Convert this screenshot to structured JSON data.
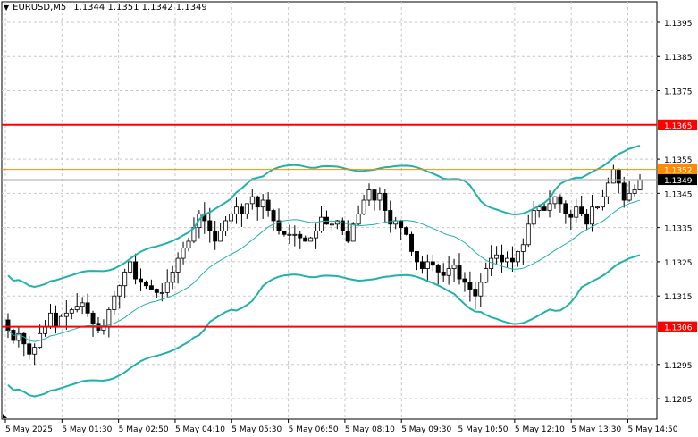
{
  "header": {
    "symbol_timeframe": "EURUSD,M5",
    "ohlc": "1.1344 1.1351 1.1342 1.1349"
  },
  "price_axis": {
    "labels": [
      "1.1395",
      "1.1385",
      "1.1375",
      "1.1365",
      "1.1355",
      "1.1352",
      "1.1349",
      "1.1345",
      "1.1335",
      "1.1325",
      "1.1315",
      "1.1306",
      "1.1295",
      "1.1285"
    ]
  },
  "time_axis": {
    "labels": [
      "5 May 2025",
      "5 May 01:30",
      "5 May 02:50",
      "5 May 04:10",
      "5 May 05:30",
      "5 May 06:50",
      "5 May 08:10",
      "5 May 09:30",
      "5 May 10:50",
      "5 May 12:10",
      "5 May 13:30",
      "5 May 14:50"
    ]
  },
  "horizontal_lines": [
    {
      "price": 1.1365,
      "label": "1.1365",
      "color": "#ff0000"
    },
    {
      "price": 1.1352,
      "label": "1.1352",
      "color": "#ff8c00"
    },
    {
      "price": 1.1306,
      "label": "1.1306",
      "color": "#ff0000"
    }
  ],
  "current_price": {
    "price": 1.1349,
    "label": "1.1349",
    "color": "#000000"
  },
  "colors": {
    "bands": "#20b2aa",
    "grid": "#c8c8c8",
    "candle": "#000000"
  },
  "chart_data": {
    "type": "candlestick",
    "y_range": [
      1.1279,
      1.1401
    ],
    "closes": [
      1.1305,
      1.1302,
      1.1304,
      1.1301,
      1.1298,
      1.13,
      1.1304,
      1.1306,
      1.131,
      1.1306,
      1.1309,
      1.131,
      1.1311,
      1.1312,
      1.1313,
      1.131,
      1.1307,
      1.1305,
      1.1306,
      1.1311,
      1.1315,
      1.1318,
      1.1322,
      1.1325,
      1.132,
      1.1319,
      1.1318,
      1.1317,
      1.1316,
      1.1316,
      1.1319,
      1.1322,
      1.1326,
      1.1329,
      1.1331,
      1.1335,
      1.1339,
      1.1337,
      1.1334,
      1.1331,
      1.1334,
      1.1337,
      1.1339,
      1.1341,
      1.1339,
      1.1342,
      1.1344,
      1.1341,
      1.1343,
      1.134,
      1.1337,
      1.1334,
      1.1333,
      1.1333,
      1.1333,
      1.1332,
      1.1331,
      1.1332,
      1.1334,
      1.1338,
      1.1336,
      1.1336,
      1.1337,
      1.1334,
      1.1331,
      1.1336,
      1.1339,
      1.1343,
      1.1346,
      1.1343,
      1.1345,
      1.134,
      1.1336,
      1.1337,
      1.1335,
      1.1333,
      1.1328,
      1.1325,
      1.1323,
      1.1325,
      1.1324,
      1.1322,
      1.1321,
      1.1323,
      1.1324,
      1.132,
      1.1319,
      1.1317,
      1.1315,
      1.1319,
      1.1323,
      1.1326,
      1.1327,
      1.1325,
      1.1326,
      1.1325,
      1.1328,
      1.133,
      1.1336,
      1.134,
      1.1341,
      1.134,
      1.1342,
      1.1344,
      1.1342,
      1.1339,
      1.1338,
      1.1341,
      1.1339,
      1.1336,
      1.1341,
      1.1341,
      1.1344,
      1.1348,
      1.1352,
      1.1348,
      1.1343,
      1.1345,
      1.1346,
      1.1349
    ]
  }
}
